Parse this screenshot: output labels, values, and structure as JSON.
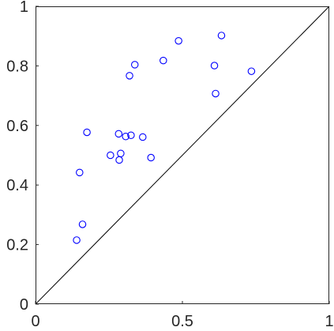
{
  "chart_data": {
    "type": "scatter",
    "title": "",
    "xlabel": "",
    "ylabel": "",
    "xlim": [
      0,
      1
    ],
    "ylim": [
      0,
      1
    ],
    "grid": false,
    "x_ticks": [
      {
        "value": 0,
        "label": "0"
      },
      {
        "value": 0.5,
        "label": "0.5"
      },
      {
        "value": 1,
        "label": "1"
      }
    ],
    "y_ticks": [
      {
        "value": 0,
        "label": "0"
      },
      {
        "value": 0.2,
        "label": "0.2"
      },
      {
        "value": 0.4,
        "label": "0.4"
      },
      {
        "value": 0.6,
        "label": "0.6"
      },
      {
        "value": 0.8,
        "label": "0.8"
      },
      {
        "value": 1,
        "label": "1"
      }
    ],
    "reference_line": {
      "x": [
        0,
        1
      ],
      "y": [
        0,
        1
      ],
      "color": "#000000"
    },
    "series": [
      {
        "marker": "circle",
        "color": "#0000ff",
        "points": [
          {
            "x": 0.14,
            "y": 0.215
          },
          {
            "x": 0.16,
            "y": 0.268
          },
          {
            "x": 0.15,
            "y": 0.442
          },
          {
            "x": 0.175,
            "y": 0.577
          },
          {
            "x": 0.255,
            "y": 0.5
          },
          {
            "x": 0.283,
            "y": 0.572
          },
          {
            "x": 0.285,
            "y": 0.484
          },
          {
            "x": 0.29,
            "y": 0.506
          },
          {
            "x": 0.307,
            "y": 0.563
          },
          {
            "x": 0.325,
            "y": 0.567
          },
          {
            "x": 0.365,
            "y": 0.561
          },
          {
            "x": 0.393,
            "y": 0.492
          },
          {
            "x": 0.32,
            "y": 0.767
          },
          {
            "x": 0.338,
            "y": 0.804
          },
          {
            "x": 0.435,
            "y": 0.818
          },
          {
            "x": 0.487,
            "y": 0.884
          },
          {
            "x": 0.609,
            "y": 0.801
          },
          {
            "x": 0.613,
            "y": 0.707
          },
          {
            "x": 0.633,
            "y": 0.902
          },
          {
            "x": 0.735,
            "y": 0.782
          }
        ]
      }
    ]
  }
}
